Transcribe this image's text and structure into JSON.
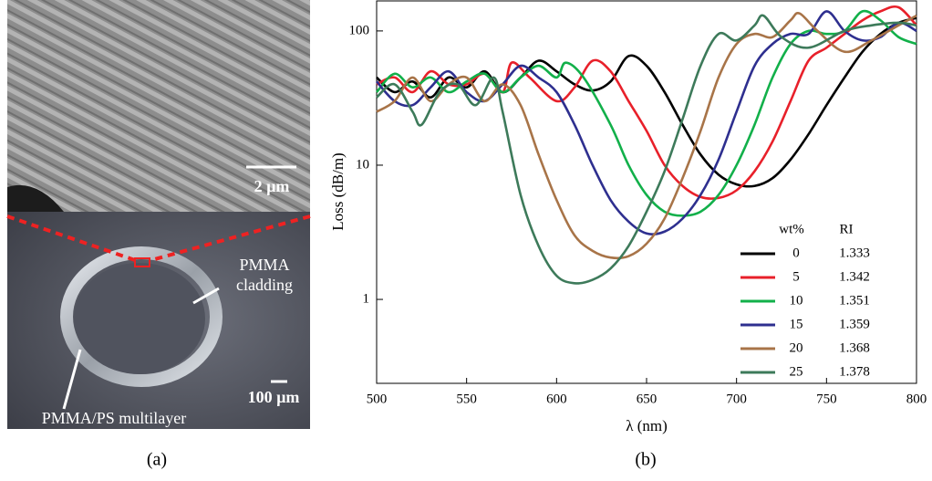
{
  "panel_a": {
    "sem_scale": "2 µm",
    "cladding_label": [
      "PMMA",
      "cladding"
    ],
    "photo_scale": "100 µm",
    "multilayer_label": "PMMA/PS multilayer"
  },
  "panel_labels": [
    "(a)",
    "(b)"
  ],
  "chart_data": {
    "type": "line",
    "x_label": "λ (nm)",
    "y_label": "Loss (dB/m)",
    "log_y": true,
    "xlim": [
      500,
      800
    ],
    "xticks": [
      500,
      550,
      600,
      650,
      700,
      750,
      800
    ],
    "ylim": [
      0.237,
      170
    ],
    "yticks": [
      1,
      10,
      100
    ],
    "legend_headers": [
      "wt%",
      "RI"
    ],
    "series": [
      {
        "name": "0",
        "ri": "1.333",
        "color": "#000000",
        "x": [
          500,
          510,
          520,
          530,
          540,
          550,
          560,
          570,
          580,
          590,
          600,
          610,
          620,
          630,
          640,
          650,
          660,
          670,
          680,
          690,
          700,
          710,
          720,
          730,
          740,
          750,
          760,
          770,
          780,
          790,
          800
        ],
        "values": [
          45,
          35,
          42,
          32,
          45,
          38,
          50,
          35,
          45,
          60,
          50,
          40,
          36,
          42,
          65,
          55,
          35,
          20,
          12,
          8.5,
          7.2,
          7.0,
          8,
          11,
          17,
          28,
          45,
          70,
          95,
          115,
          125
        ]
      },
      {
        "name": "5",
        "ri": "1.342",
        "color": "#e8202a",
        "x": [
          500,
          510,
          520,
          530,
          540,
          550,
          560,
          570,
          575,
          585,
          600,
          610,
          620,
          630,
          640,
          650,
          660,
          670,
          680,
          690,
          700,
          710,
          720,
          730,
          740,
          750,
          760,
          770,
          780,
          790,
          800
        ],
        "values": [
          40,
          45,
          35,
          50,
          40,
          40,
          48,
          35,
          58,
          45,
          30,
          38,
          60,
          50,
          30,
          18,
          10,
          7,
          5.8,
          5.7,
          6.5,
          9,
          15,
          30,
          60,
          75,
          95,
          120,
          140,
          150,
          110
        ]
      },
      {
        "name": "10",
        "ri": "1.351",
        "color": "#12b04a",
        "x": [
          500,
          510,
          520,
          530,
          540,
          550,
          560,
          570,
          580,
          590,
          600,
          605,
          615,
          630,
          640,
          650,
          660,
          670,
          680,
          690,
          700,
          710,
          720,
          730,
          740,
          750,
          760,
          770,
          780,
          790,
          800
        ],
        "values": [
          35,
          48,
          38,
          45,
          35,
          42,
          48,
          35,
          45,
          55,
          45,
          58,
          45,
          20,
          10,
          6,
          4.5,
          4.2,
          4.5,
          6,
          10,
          20,
          45,
          80,
          100,
          95,
          100,
          140,
          120,
          90,
          80
        ]
      },
      {
        "name": "15",
        "ri": "1.359",
        "color": "#2e2f8f",
        "x": [
          500,
          510,
          520,
          530,
          540,
          550,
          560,
          570,
          580,
          590,
          600,
          610,
          620,
          630,
          640,
          650,
          660,
          670,
          680,
          690,
          700,
          710,
          720,
          730,
          740,
          750,
          760,
          770,
          780,
          790,
          800
        ],
        "values": [
          42,
          30,
          28,
          38,
          50,
          35,
          30,
          40,
          55,
          45,
          35,
          20,
          10,
          5.5,
          3.8,
          3.1,
          3.2,
          4,
          6,
          11,
          25,
          55,
          80,
          95,
          95,
          140,
          100,
          85,
          90,
          115,
          100
        ]
      },
      {
        "name": "20",
        "ri": "1.368",
        "color": "#a87448",
        "x": [
          500,
          510,
          520,
          530,
          540,
          550,
          560,
          570,
          580,
          590,
          600,
          610,
          620,
          630,
          640,
          650,
          660,
          670,
          680,
          690,
          700,
          710,
          720,
          730,
          735,
          745,
          760,
          775,
          790,
          800
        ],
        "values": [
          25,
          30,
          45,
          30,
          40,
          45,
          30,
          40,
          28,
          12,
          5.5,
          3,
          2.3,
          2.05,
          2.1,
          2.6,
          4,
          8,
          18,
          45,
          80,
          95,
          90,
          120,
          135,
          100,
          70,
          85,
          110,
          130
        ]
      },
      {
        "name": "25",
        "ri": "1.378",
        "color": "#3d7a5a",
        "x": [
          500,
          510,
          520,
          525,
          535,
          545,
          555,
          565,
          570,
          580,
          590,
          600,
          610,
          620,
          630,
          640,
          650,
          660,
          670,
          680,
          690,
          700,
          710,
          715,
          725,
          740,
          760,
          775,
          790,
          800
        ],
        "values": [
          32,
          40,
          25,
          20,
          35,
          40,
          28,
          45,
          25,
          6,
          2.5,
          1.5,
          1.32,
          1.4,
          1.7,
          2.5,
          4.5,
          9,
          22,
          55,
          95,
          85,
          110,
          130,
          90,
          75,
          100,
          110,
          115,
          110
        ]
      }
    ]
  }
}
